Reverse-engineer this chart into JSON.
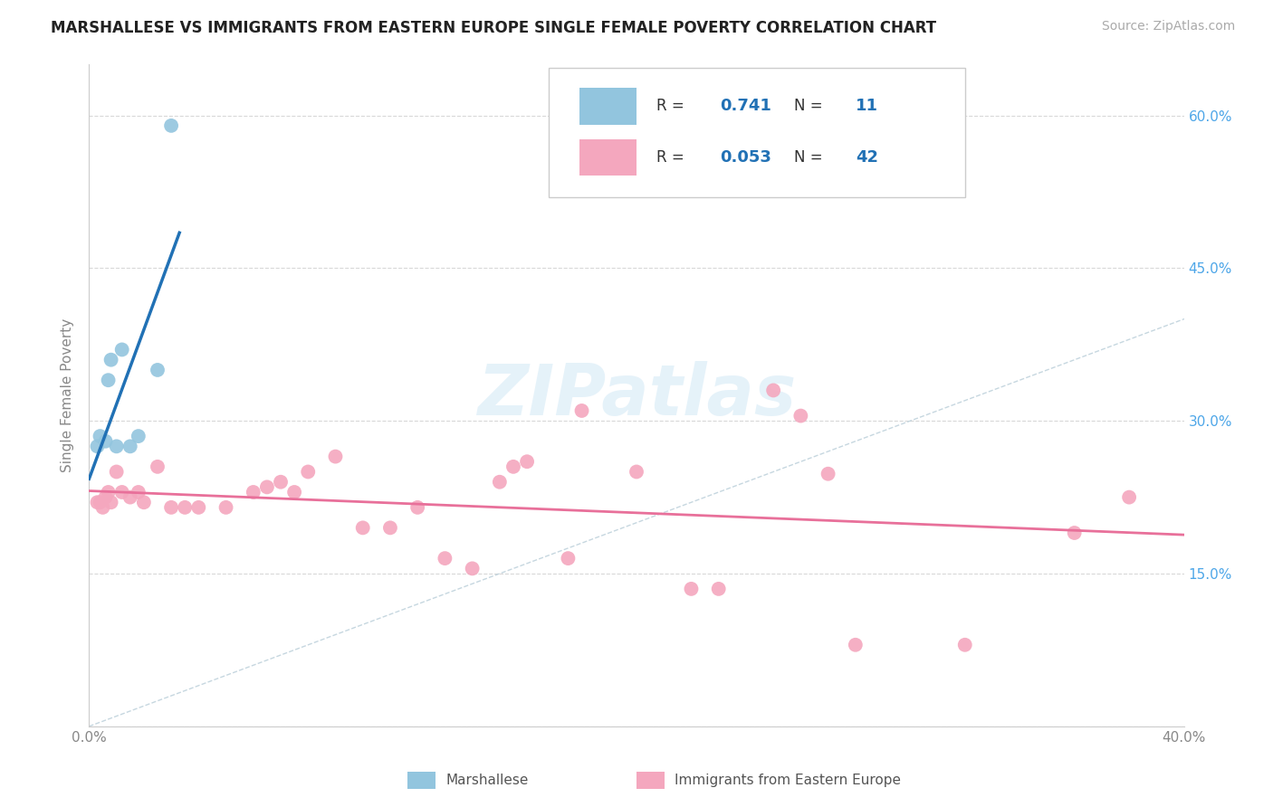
{
  "title": "MARSHALLESE VS IMMIGRANTS FROM EASTERN EUROPE SINGLE FEMALE POVERTY CORRELATION CHART",
  "source": "Source: ZipAtlas.com",
  "ylabel": "Single Female Poverty",
  "xlim": [
    0.0,
    0.4
  ],
  "ylim": [
    0.0,
    0.65
  ],
  "xtick_positions": [
    0.0,
    0.05,
    0.1,
    0.15,
    0.2,
    0.25,
    0.3,
    0.35,
    0.4
  ],
  "xticklabels": [
    "0.0%",
    "",
    "",
    "",
    "",
    "",
    "",
    "",
    "40.0%"
  ],
  "ytick_positions": [
    0.0,
    0.15,
    0.3,
    0.45,
    0.6
  ],
  "ytick_labels_right": [
    "",
    "15.0%",
    "30.0%",
    "45.0%",
    "60.0%"
  ],
  "blue_R": "0.741",
  "blue_N": "11",
  "pink_R": "0.053",
  "pink_N": "42",
  "blue_scatter_color": "#92c5de",
  "pink_scatter_color": "#f4a7be",
  "blue_line_color": "#2171b5",
  "pink_line_color": "#e8709a",
  "right_axis_color": "#4da6e8",
  "legend_blue_label": "Marshallese",
  "legend_pink_label": "Immigrants from Eastern Europe",
  "watermark": "ZIPatlas",
  "blue_x": [
    0.003,
    0.004,
    0.006,
    0.007,
    0.008,
    0.01,
    0.012,
    0.015,
    0.018,
    0.025,
    0.03
  ],
  "blue_y": [
    0.275,
    0.285,
    0.28,
    0.34,
    0.36,
    0.275,
    0.37,
    0.275,
    0.285,
    0.35,
    0.59
  ],
  "pink_x": [
    0.003,
    0.004,
    0.005,
    0.006,
    0.007,
    0.008,
    0.01,
    0.012,
    0.015,
    0.018,
    0.02,
    0.025,
    0.03,
    0.035,
    0.04,
    0.05,
    0.06,
    0.065,
    0.07,
    0.075,
    0.08,
    0.09,
    0.1,
    0.11,
    0.12,
    0.13,
    0.14,
    0.15,
    0.155,
    0.16,
    0.175,
    0.18,
    0.2,
    0.22,
    0.23,
    0.25,
    0.26,
    0.27,
    0.28,
    0.32,
    0.36,
    0.38
  ],
  "pink_y": [
    0.22,
    0.22,
    0.215,
    0.225,
    0.23,
    0.22,
    0.25,
    0.23,
    0.225,
    0.23,
    0.22,
    0.255,
    0.215,
    0.215,
    0.215,
    0.215,
    0.23,
    0.235,
    0.24,
    0.23,
    0.25,
    0.265,
    0.195,
    0.195,
    0.215,
    0.165,
    0.155,
    0.24,
    0.255,
    0.26,
    0.165,
    0.31,
    0.25,
    0.135,
    0.135,
    0.33,
    0.305,
    0.248,
    0.08,
    0.08,
    0.19,
    0.225
  ]
}
